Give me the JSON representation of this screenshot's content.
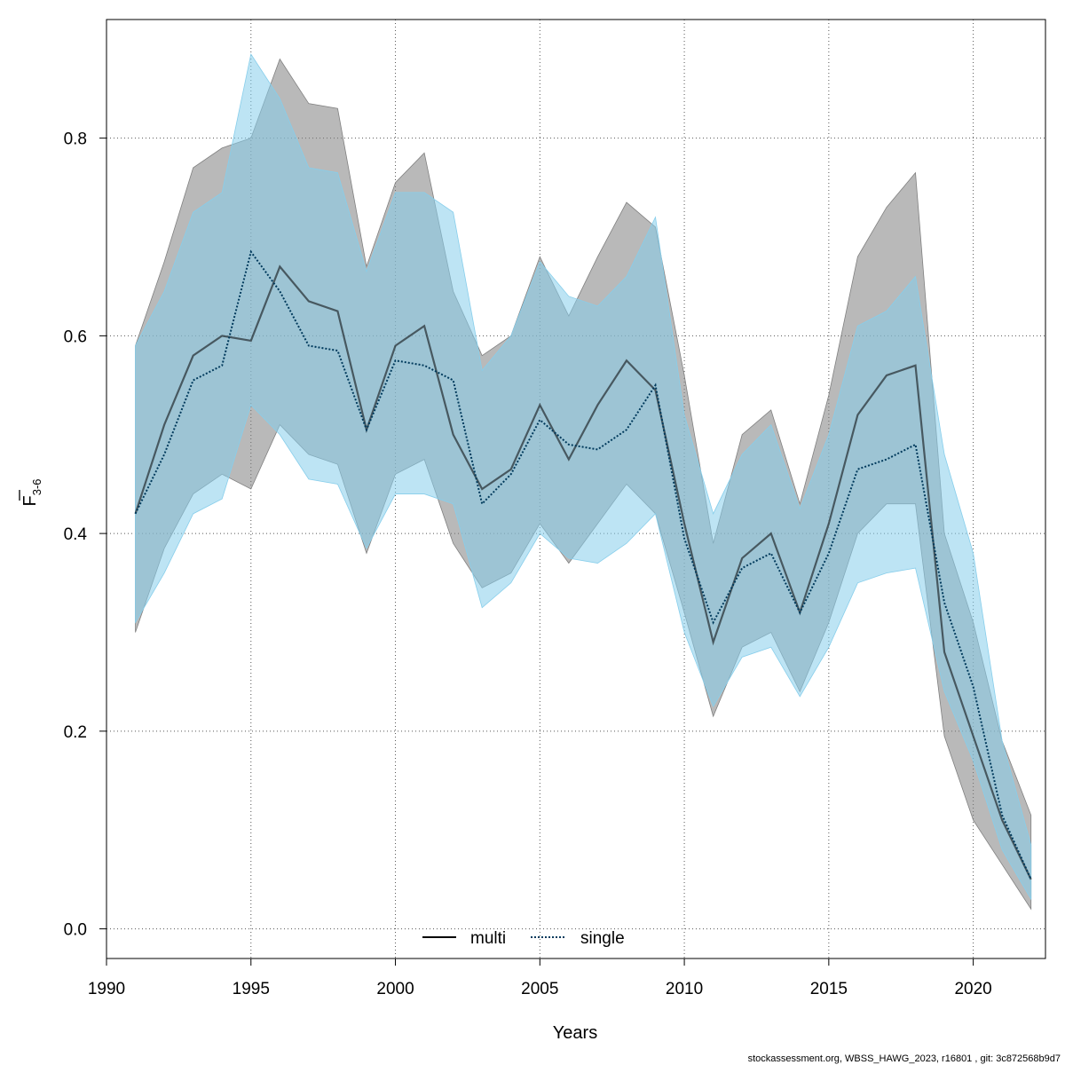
{
  "chart_data": {
    "type": "line",
    "xlabel": "Years",
    "ylabel": {
      "main": "F",
      "subscript": "3-6"
    },
    "xlim": [
      1990,
      2022.5
    ],
    "ylim": [
      -0.03,
      0.92
    ],
    "xticks": [
      1990,
      1995,
      2000,
      2005,
      2010,
      2015,
      2020
    ],
    "yticks": [
      0.0,
      0.2,
      0.4,
      0.6,
      0.8
    ],
    "xtick_labels": [
      "1990",
      "1995",
      "2000",
      "2005",
      "2010",
      "2015",
      "2020"
    ],
    "ytick_labels": [
      "0.0",
      "0.2",
      "0.4",
      "0.6",
      "0.8"
    ],
    "grid": true,
    "legend_position": "bottom-center",
    "x": [
      1991,
      1992,
      1993,
      1994,
      1995,
      1996,
      1997,
      1998,
      1999,
      2000,
      2001,
      2002,
      2003,
      2004,
      2005,
      2006,
      2007,
      2008,
      2009,
      2010,
      2011,
      2012,
      2013,
      2014,
      2015,
      2016,
      2017,
      2018,
      2019,
      2020,
      2021,
      2022
    ],
    "series": [
      {
        "name": "multi",
        "color": "#000000",
        "band_color": "#808080",
        "line_style": "solid",
        "values": [
          0.42,
          0.51,
          0.58,
          0.6,
          0.595,
          0.67,
          0.635,
          0.625,
          0.505,
          0.59,
          0.61,
          0.5,
          0.445,
          0.465,
          0.53,
          0.475,
          0.53,
          0.575,
          0.545,
          0.41,
          0.29,
          0.375,
          0.4,
          0.32,
          0.41,
          0.52,
          0.56,
          0.57,
          0.28,
          0.195,
          0.11,
          0.05
        ],
        "lower": [
          0.3,
          0.385,
          0.44,
          0.46,
          0.445,
          0.51,
          0.48,
          0.47,
          0.38,
          0.46,
          0.475,
          0.39,
          0.345,
          0.36,
          0.41,
          0.37,
          0.41,
          0.45,
          0.42,
          0.32,
          0.215,
          0.285,
          0.3,
          0.24,
          0.31,
          0.4,
          0.43,
          0.43,
          0.195,
          0.11,
          0.065,
          0.02
        ],
        "upper": [
          0.59,
          0.675,
          0.77,
          0.79,
          0.8,
          0.88,
          0.835,
          0.83,
          0.67,
          0.755,
          0.785,
          0.645,
          0.58,
          0.6,
          0.68,
          0.62,
          0.68,
          0.735,
          0.71,
          0.56,
          0.39,
          0.5,
          0.525,
          0.43,
          0.54,
          0.68,
          0.73,
          0.765,
          0.4,
          0.31,
          0.19,
          0.115
        ]
      },
      {
        "name": "single",
        "color": "#003a5c",
        "band_color": "#87ceeb",
        "line_style": "dotted",
        "values": [
          0.42,
          0.48,
          0.555,
          0.57,
          0.685,
          0.645,
          0.59,
          0.585,
          0.505,
          0.575,
          0.57,
          0.555,
          0.43,
          0.46,
          0.515,
          0.49,
          0.485,
          0.505,
          0.55,
          0.395,
          0.31,
          0.365,
          0.38,
          0.32,
          0.38,
          0.465,
          0.475,
          0.49,
          0.33,
          0.245,
          0.115,
          0.05
        ],
        "lower": [
          0.31,
          0.36,
          0.42,
          0.435,
          0.53,
          0.5,
          0.455,
          0.45,
          0.385,
          0.44,
          0.44,
          0.43,
          0.325,
          0.35,
          0.4,
          0.375,
          0.37,
          0.39,
          0.42,
          0.3,
          0.225,
          0.275,
          0.285,
          0.235,
          0.285,
          0.35,
          0.36,
          0.365,
          0.24,
          0.17,
          0.08,
          0.03
        ],
        "upper": [
          0.59,
          0.645,
          0.725,
          0.745,
          0.885,
          0.84,
          0.77,
          0.765,
          0.665,
          0.745,
          0.745,
          0.725,
          0.565,
          0.6,
          0.675,
          0.64,
          0.63,
          0.66,
          0.72,
          0.52,
          0.42,
          0.48,
          0.51,
          0.425,
          0.5,
          0.61,
          0.625,
          0.66,
          0.48,
          0.38,
          0.19,
          0.085
        ]
      }
    ]
  },
  "footer": "stockassessment.org, WBSS_HAWG_2023, r16801 , git: 3c872568b9d7"
}
